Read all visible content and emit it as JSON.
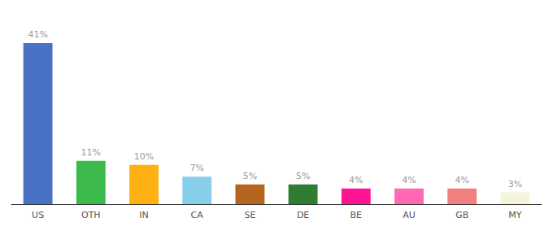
{
  "chart_data": {
    "type": "bar",
    "categories": [
      "US",
      "OTH",
      "IN",
      "CA",
      "SE",
      "DE",
      "BE",
      "AU",
      "GB",
      "MY"
    ],
    "values": [
      41,
      11,
      10,
      7,
      5,
      5,
      4,
      4,
      4,
      3
    ],
    "value_labels": [
      "41%",
      "11%",
      "10%",
      "7%",
      "5%",
      "5%",
      "4%",
      "4%",
      "4%",
      "3%"
    ],
    "colors": [
      "#4a72c4",
      "#3dba4e",
      "#ffb013",
      "#87ceeb",
      "#b5651d",
      "#2e7d32",
      "#ff1493",
      "#ff69b4",
      "#f08080",
      "#f5f5dc"
    ],
    "ylim": [
      0,
      47
    ],
    "data_labels": true,
    "tick_labels": "x",
    "grid": false
  }
}
